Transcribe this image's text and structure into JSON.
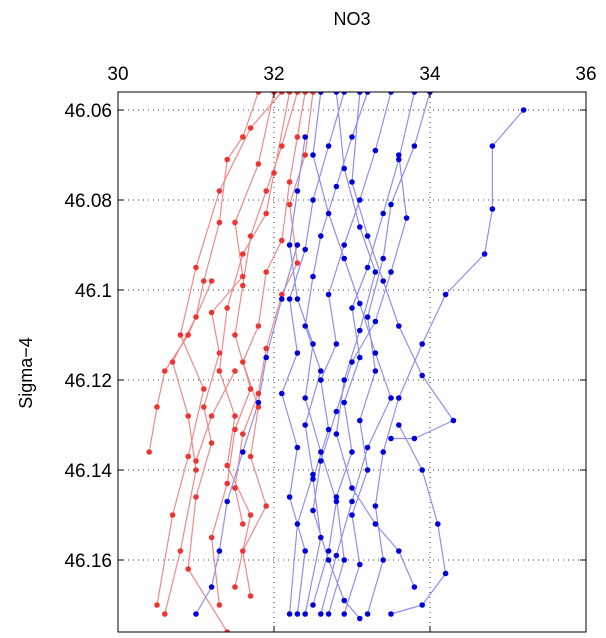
{
  "chart_data": {
    "type": "line",
    "title": "NO3",
    "xlabel": "",
    "ylabel": "Sigma−4",
    "x_axis_position": "top",
    "y_axis_direction": "reversed",
    "xlim": [
      30,
      36
    ],
    "ylim": [
      46.056,
      46.176
    ],
    "x_ticks": [
      "30",
      "32",
      "34",
      "36"
    ],
    "y_ticks": [
      "46.06",
      "46.08",
      "46.1",
      "46.12",
      "46.14",
      "46.16"
    ],
    "grid": "dotted",
    "marker": "dot",
    "series": [
      {
        "color": "#ee3333",
        "line_color": "#f08a8a",
        "points": [
          [
            32.1,
            46.056
          ],
          [
            31.7,
            46.064
          ],
          [
            31.3,
            46.078
          ],
          [
            31.0,
            46.095
          ],
          [
            30.8,
            46.11
          ],
          [
            31.1,
            46.122
          ],
          [
            30.9,
            46.137
          ],
          [
            30.7,
            46.15
          ],
          [
            30.5,
            46.17
          ]
        ]
      },
      {
        "color": "#ee3333",
        "line_color": "#f08a8a",
        "points": [
          [
            31.8,
            46.056
          ],
          [
            31.6,
            46.066
          ],
          [
            31.4,
            46.071
          ],
          [
            31.3,
            46.085
          ],
          [
            31.1,
            46.098
          ],
          [
            31.0,
            46.106
          ],
          [
            30.7,
            46.116
          ],
          [
            30.9,
            46.128
          ],
          [
            31.0,
            46.14
          ],
          [
            30.8,
            46.158
          ],
          [
            30.6,
            46.172
          ]
        ]
      },
      {
        "color": "#ee3333",
        "line_color": "#f08a8a",
        "points": [
          [
            32.0,
            46.056
          ],
          [
            31.8,
            46.072
          ],
          [
            31.5,
            46.085
          ],
          [
            31.6,
            46.097
          ],
          [
            31.2,
            46.105
          ],
          [
            31.3,
            46.114
          ],
          [
            31.1,
            46.126
          ],
          [
            31.2,
            46.134
          ],
          [
            31.0,
            46.146
          ],
          [
            30.9,
            46.162
          ],
          [
            31.4,
            46.176
          ]
        ]
      },
      {
        "color": "#ee3333",
        "line_color": "#f08a8a",
        "points": [
          [
            32.3,
            46.056
          ],
          [
            32.1,
            46.068
          ],
          [
            31.9,
            46.078
          ],
          [
            31.7,
            46.088
          ],
          [
            31.6,
            46.099
          ],
          [
            31.5,
            46.11
          ],
          [
            31.7,
            46.122
          ],
          [
            31.5,
            46.131
          ],
          [
            31.4,
            46.143
          ],
          [
            31.2,
            46.155
          ],
          [
            31.3,
            46.17
          ]
        ]
      },
      {
        "color": "#ee3333",
        "line_color": "#f08a8a",
        "points": [
          [
            32.2,
            46.056
          ],
          [
            32.0,
            46.074
          ],
          [
            31.9,
            46.083
          ],
          [
            31.6,
            46.092
          ],
          [
            31.4,
            46.104
          ],
          [
            31.3,
            46.118
          ],
          [
            31.5,
            46.128
          ],
          [
            31.4,
            46.139
          ],
          [
            31.7,
            46.15
          ],
          [
            31.5,
            46.166
          ]
        ]
      },
      {
        "color": "#ee3333",
        "line_color": "#f08a8a",
        "points": [
          [
            32.4,
            46.056
          ],
          [
            32.3,
            46.066
          ],
          [
            32.2,
            46.076
          ],
          [
            32.1,
            46.089
          ],
          [
            31.9,
            46.096
          ],
          [
            31.8,
            46.108
          ],
          [
            31.6,
            46.116
          ],
          [
            31.8,
            46.126
          ],
          [
            31.7,
            46.137
          ],
          [
            31.9,
            46.148
          ],
          [
            31.6,
            46.158
          ],
          [
            31.7,
            46.168
          ]
        ]
      },
      {
        "color": "#ee3333",
        "line_color": "#f08a8a",
        "points": [
          [
            32.5,
            46.056
          ],
          [
            32.4,
            46.07
          ],
          [
            32.2,
            46.081
          ],
          [
            32.3,
            46.094
          ],
          [
            32.1,
            46.101
          ],
          [
            31.9,
            46.113
          ],
          [
            31.8,
            46.123
          ],
          [
            31.6,
            46.132
          ],
          [
            31.5,
            46.144
          ],
          [
            31.6,
            46.152
          ]
        ]
      },
      {
        "color": "#ee3333",
        "line_color": "#f08a8a",
        "points": [
          [
            31.2,
            46.098
          ],
          [
            30.9,
            46.11
          ],
          [
            30.6,
            46.118
          ],
          [
            30.5,
            46.126
          ],
          [
            30.4,
            46.136
          ]
        ]
      },
      {
        "color": "#ee3333",
        "line_color": "#f08a8a",
        "points": [
          [
            31.5,
            46.118
          ],
          [
            31.2,
            46.128
          ],
          [
            31.0,
            46.138
          ]
        ]
      },
      {
        "color": "#0000dd",
        "line_color": "#8f8ff0",
        "points": [
          [
            32.9,
            46.056
          ],
          [
            32.7,
            46.068
          ],
          [
            32.5,
            46.08
          ],
          [
            32.4,
            46.091
          ],
          [
            32.2,
            46.102
          ],
          [
            32.3,
            46.114
          ],
          [
            32.1,
            46.123
          ],
          [
            32.3,
            46.135
          ],
          [
            32.2,
            46.146
          ],
          [
            32.4,
            46.158
          ],
          [
            32.3,
            46.172
          ]
        ]
      },
      {
        "color": "#0000dd",
        "line_color": "#8f8ff0",
        "points": [
          [
            33.2,
            46.056
          ],
          [
            33.0,
            46.066
          ],
          [
            32.8,
            46.077
          ],
          [
            32.6,
            46.088
          ],
          [
            32.5,
            46.097
          ],
          [
            32.4,
            46.108
          ],
          [
            32.6,
            46.118
          ],
          [
            32.4,
            46.13
          ],
          [
            32.5,
            46.141
          ],
          [
            32.3,
            46.152
          ],
          [
            32.2,
            46.172
          ]
        ]
      },
      {
        "color": "#0000dd",
        "line_color": "#8f8ff0",
        "points": [
          [
            33.5,
            46.056
          ],
          [
            33.3,
            46.069
          ],
          [
            33.1,
            46.08
          ],
          [
            32.9,
            46.09
          ],
          [
            32.7,
            46.101
          ],
          [
            32.8,
            46.112
          ],
          [
            32.6,
            46.12
          ],
          [
            32.7,
            46.131
          ],
          [
            32.5,
            46.142
          ],
          [
            32.6,
            46.155
          ],
          [
            32.4,
            46.172
          ]
        ]
      },
      {
        "color": "#0000dd",
        "line_color": "#8f8ff0",
        "points": [
          [
            33.8,
            46.056
          ],
          [
            33.6,
            46.071
          ],
          [
            33.4,
            46.083
          ],
          [
            33.2,
            46.095
          ],
          [
            33.0,
            46.104
          ],
          [
            33.1,
            46.115
          ],
          [
            32.9,
            46.125
          ],
          [
            33.0,
            46.136
          ],
          [
            32.8,
            46.146
          ],
          [
            32.9,
            46.16
          ],
          [
            32.7,
            46.172
          ]
        ]
      },
      {
        "color": "#0000dd",
        "line_color": "#8f8ff0",
        "points": [
          [
            34.0,
            46.056
          ],
          [
            33.8,
            46.068
          ],
          [
            33.5,
            46.081
          ],
          [
            33.4,
            46.093
          ],
          [
            33.2,
            46.106
          ],
          [
            33.3,
            46.118
          ],
          [
            33.1,
            46.129
          ],
          [
            33.2,
            46.14
          ],
          [
            33.0,
            46.15
          ],
          [
            33.1,
            46.161
          ],
          [
            32.9,
            46.172
          ]
        ]
      },
      {
        "color": "#0000dd",
        "line_color": "#8f8ff0",
        "points": [
          [
            35.2,
            46.06
          ],
          [
            34.8,
            46.068
          ],
          [
            34.8,
            46.082
          ],
          [
            34.7,
            46.092
          ],
          [
            34.2,
            46.101
          ],
          [
            33.9,
            46.112
          ],
          [
            33.6,
            46.124
          ],
          [
            33.4,
            46.136
          ],
          [
            33.3,
            46.148
          ],
          [
            33.4,
            46.16
          ],
          [
            33.2,
            46.172
          ]
        ]
      },
      {
        "color": "#0000dd",
        "line_color": "#8f8ff0",
        "points": [
          [
            33.1,
            46.056
          ],
          [
            33.0,
            46.076
          ],
          [
            33.2,
            46.088
          ],
          [
            33.4,
            46.098
          ],
          [
            33.6,
            46.108
          ],
          [
            33.9,
            46.119
          ],
          [
            34.3,
            46.129
          ],
          [
            33.8,
            46.133
          ],
          [
            33.5,
            46.133
          ]
        ]
      },
      {
        "color": "#0000dd",
        "line_color": "#8f8ff0",
        "points": [
          [
            32.6,
            46.056
          ],
          [
            32.5,
            46.07
          ],
          [
            32.7,
            46.083
          ],
          [
            32.9,
            46.093
          ],
          [
            33.1,
            46.103
          ],
          [
            33.3,
            46.114
          ],
          [
            33.5,
            46.124
          ],
          [
            33.2,
            46.135
          ],
          [
            33.0,
            46.147
          ],
          [
            32.8,
            46.159
          ],
          [
            32.6,
            46.172
          ]
        ]
      },
      {
        "color": "#0000dd",
        "line_color": "#8f8ff0",
        "points": [
          [
            32.8,
            46.056
          ],
          [
            32.9,
            46.073
          ],
          [
            33.1,
            46.086
          ],
          [
            33.3,
            46.096
          ],
          [
            33.1,
            46.109
          ],
          [
            32.9,
            46.12
          ],
          [
            32.8,
            46.132
          ],
          [
            33.0,
            46.144
          ],
          [
            33.3,
            46.152
          ],
          [
            33.6,
            46.158
          ],
          [
            33.8,
            46.166
          ]
        ]
      },
      {
        "color": "#0000dd",
        "line_color": "#8f8ff0",
        "points": [
          [
            33.6,
            46.07
          ],
          [
            33.7,
            46.084
          ],
          [
            33.5,
            46.096
          ],
          [
            33.3,
            46.107
          ],
          [
            33.0,
            46.116
          ],
          [
            32.8,
            46.127
          ],
          [
            32.6,
            46.138
          ],
          [
            32.5,
            46.149
          ],
          [
            32.7,
            46.16
          ],
          [
            32.9,
            46.169
          ],
          [
            33.1,
            46.173
          ]
        ]
      },
      {
        "color": "#0000dd",
        "line_color": "#8f8ff0",
        "points": [
          [
            32.3,
            46.09
          ],
          [
            32.1,
            46.102
          ],
          [
            31.9,
            46.115
          ],
          [
            31.8,
            46.125
          ],
          [
            31.6,
            46.136
          ],
          [
            31.4,
            46.147
          ],
          [
            31.3,
            46.158
          ],
          [
            31.2,
            46.166
          ],
          [
            31.0,
            46.172
          ]
        ]
      },
      {
        "color": "#0000dd",
        "line_color": "#8f8ff0",
        "points": [
          [
            33.6,
            46.13
          ],
          [
            33.9,
            46.14
          ],
          [
            34.1,
            46.152
          ],
          [
            34.2,
            46.163
          ],
          [
            33.9,
            46.17
          ],
          [
            33.5,
            46.172
          ]
        ]
      },
      {
        "color": "#0000dd",
        "line_color": "#8f8ff0",
        "points": [
          [
            32.4,
            46.066
          ],
          [
            32.3,
            46.078
          ],
          [
            32.2,
            46.09
          ],
          [
            32.3,
            46.102
          ],
          [
            32.5,
            46.112
          ],
          [
            32.4,
            46.124
          ],
          [
            32.6,
            46.136
          ],
          [
            32.8,
            46.147
          ],
          [
            32.7,
            46.158
          ],
          [
            32.5,
            46.17
          ]
        ]
      }
    ]
  }
}
